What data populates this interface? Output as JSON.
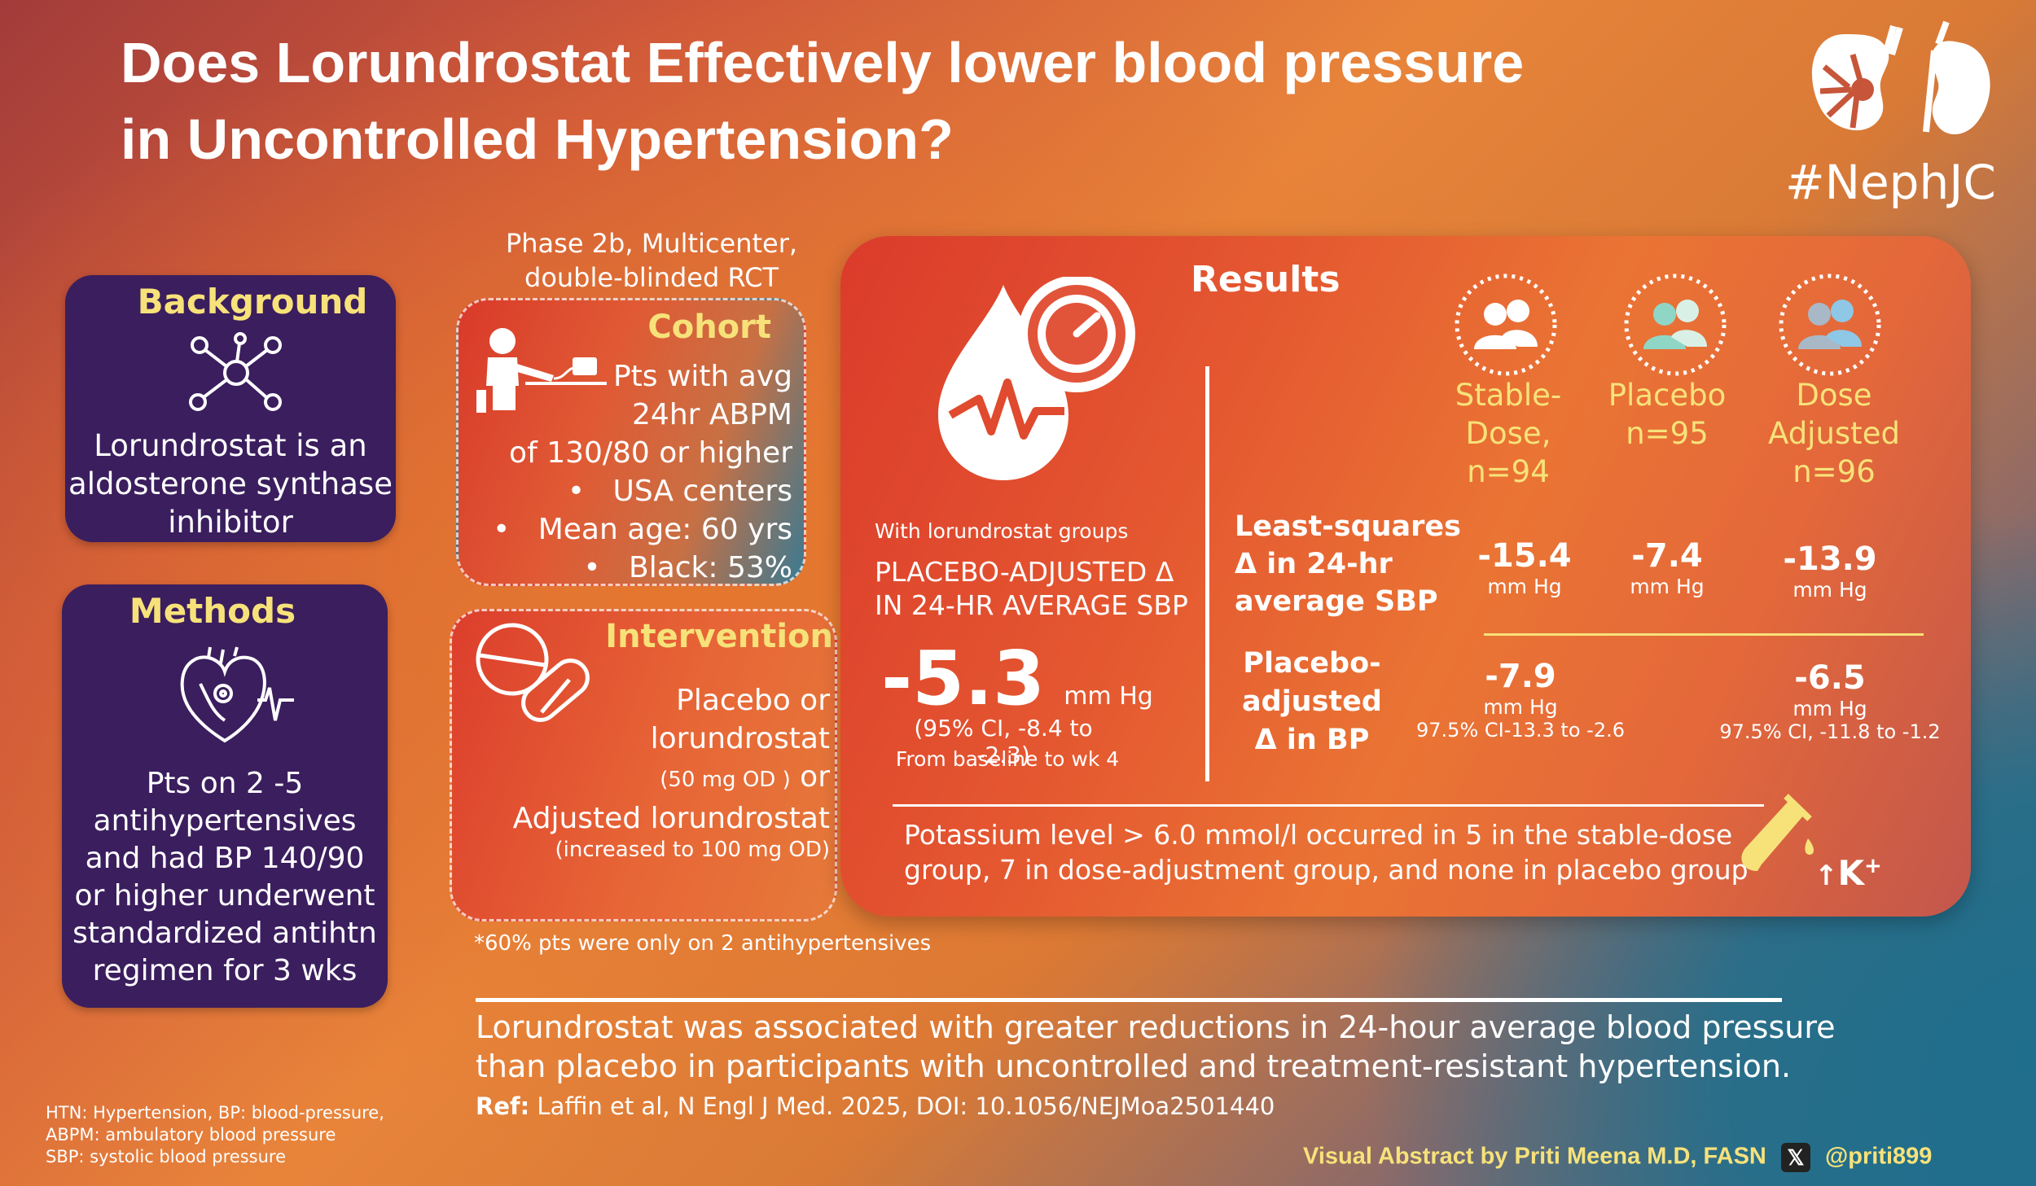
{
  "title_line1": "Does Lorundrostat Effectively lower blood pressure",
  "title_line2": "in Uncontrolled Hypertension?",
  "hashtag": "#NephJC",
  "study_design": [
    "Phase 2b, Multicenter,",
    "double-blinded RCT"
  ],
  "background": {
    "heading": "Background",
    "text": [
      "Lorundrostat is an",
      "aldosterone synthase",
      "inhibitor"
    ]
  },
  "methods": {
    "heading": "Methods",
    "text": [
      "Pts on  2 -5",
      "antihypertensives",
      "and had BP 140/90",
      "or higher underwent",
      "standardized antihtn",
      "regimen for 3 wks"
    ]
  },
  "cohort": {
    "heading": "Cohort",
    "lines": [
      "Pts with avg",
      "24hr ABPM",
      "of 130/80 or higher"
    ],
    "bullets": [
      "USA centers",
      "Mean age: 60 yrs",
      "Black: 53%"
    ]
  },
  "intervention": {
    "heading": "Intervention",
    "line1": "Placebo or",
    "line2": "lorundrostat",
    "line3_small": "(50 mg OD )",
    "line3_big": " or",
    "line4": "Adjusted lorundrostat",
    "line5": "(increased to 100 mg OD)"
  },
  "footnote": "*60% pts were only on 2 antihypertensives",
  "results": {
    "heading": "Results",
    "with_groups": "With lorundrostat groups",
    "placebo_adj_title1": "PLACEBO-ADJUSTED Δ",
    "placebo_adj_title2": "IN 24-HR AVERAGE SBP",
    "main_value": "-5.3",
    "main_unit": "mm Hg",
    "main_ci": "(95% CI, -8.4 to -2.3)",
    "main_period": "From baseline to wk 4",
    "groups": [
      {
        "label1": "Stable-",
        "label2": "Dose, n=94",
        "label3": ""
      },
      {
        "label1": "Placebo",
        "label2": "n=95",
        "label3": ""
      },
      {
        "label1": "Dose",
        "label2": "Adjusted",
        "label3": "n=96"
      }
    ],
    "ls_label": [
      "Least-squares",
      "Δ in 24-hr",
      "average SBP"
    ],
    "ls_values": [
      "-15.4",
      "-7.4",
      "-13.9"
    ],
    "unit": "mm Hg",
    "pa_label": [
      "Placebo-",
      "adjusted",
      "Δ in BP"
    ],
    "pa_stable_value": "-7.9",
    "pa_stable_ci": "97.5% CI-13.3 to -2.6",
    "pa_dose_value": "-6.5",
    "pa_dose_ci": "97.5% CI, -11.8 to -1.2",
    "potassium_line1": "Potassium level > 6.0 mmol/l occurred in 5 in the stable-dose",
    "potassium_line2": "group, 7 in dose-adjustment group, and none in placebo group",
    "k_label": "K",
    "k_sup": "+",
    "k_arrow": "↑"
  },
  "conclusion_line1": "Lorundrostat was associated with greater reductions in 24-hour average blood pressure",
  "conclusion_line2": "than placebo in participants with uncontrolled and treatment-resistant hypertension.",
  "ref_label": "Ref:",
  "ref_text": " Laffin et al, N Engl J Med. 2025, DOI: 10.1056/NEJMoa2501440",
  "abbrev": [
    "HTN: Hypertension, BP:  blood-pressure,",
    "ABPM: ambulatory blood pressure",
    "SBP: systolic blood pressure"
  ],
  "credit": "Visual Abstract by Priti Meena M.D, FASN",
  "handle": "@priti899",
  "colors": {
    "accent_yellow": "#f7e27a",
    "purple_box": "#3b1e5e",
    "results_red": "#e45630"
  }
}
